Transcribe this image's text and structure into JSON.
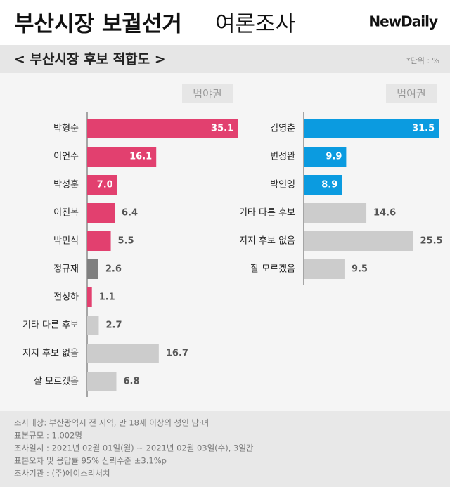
{
  "header": {
    "title_main": "부산시장 보궐선거",
    "title_sub": "여론조사",
    "logo": "NewDaily"
  },
  "subtitle": "< 부산시장 후보 적합도 >",
  "unit": "*단위 : %",
  "chart_data": [
    {
      "type": "bar",
      "orientation": "horizontal",
      "group_label": "범야권",
      "categories": [
        "박형준",
        "이언주",
        "박성훈",
        "이진복",
        "박민식",
        "정규재",
        "전성하",
        "기타 다른 후보",
        "지지 후보 없음",
        "잘 모르겠음"
      ],
      "values": [
        35.1,
        16.1,
        7.0,
        6.4,
        5.5,
        2.6,
        1.1,
        2.7,
        16.7,
        6.8
      ],
      "value_labels": [
        "35.1",
        "16.1",
        "7.0",
        "6.4",
        "5.5",
        "2.6",
        "1.1",
        "2.7",
        "16.7",
        "6.8"
      ],
      "colors": [
        "#e2406f",
        "#e2406f",
        "#e2406f",
        "#e2406f",
        "#e2406f",
        "#7f7f7f",
        "#e2406f",
        "#cccccc",
        "#cccccc",
        "#cccccc"
      ]
    },
    {
      "type": "bar",
      "orientation": "horizontal",
      "group_label": "범여권",
      "categories": [
        "김영춘",
        "변성완",
        "박인영",
        "기타 다른 후보",
        "지지 후보 없음",
        "잘 모르겠음"
      ],
      "values": [
        31.5,
        9.9,
        8.9,
        14.6,
        25.5,
        9.5
      ],
      "value_labels": [
        "31.5",
        "9.9",
        "8.9",
        "14.6",
        "25.5",
        "9.5"
      ],
      "colors": [
        "#0b9be0",
        "#0b9be0",
        "#0b9be0",
        "#cccccc",
        "#cccccc",
        "#cccccc"
      ]
    }
  ],
  "footnotes": [
    "조사대상: 부산광역시 전 지역, 만 18세 이상의 성인 남·녀",
    "표본규모 : 1,002명",
    "조사일시 : 2021년 02월 01일(월) ~ 2021년 02월 03일(수), 3일간",
    "표본오차 및 응답률 95% 신뢰수준 ±3.1%p",
    "조사기관 : (주)에이스리서치"
  ]
}
